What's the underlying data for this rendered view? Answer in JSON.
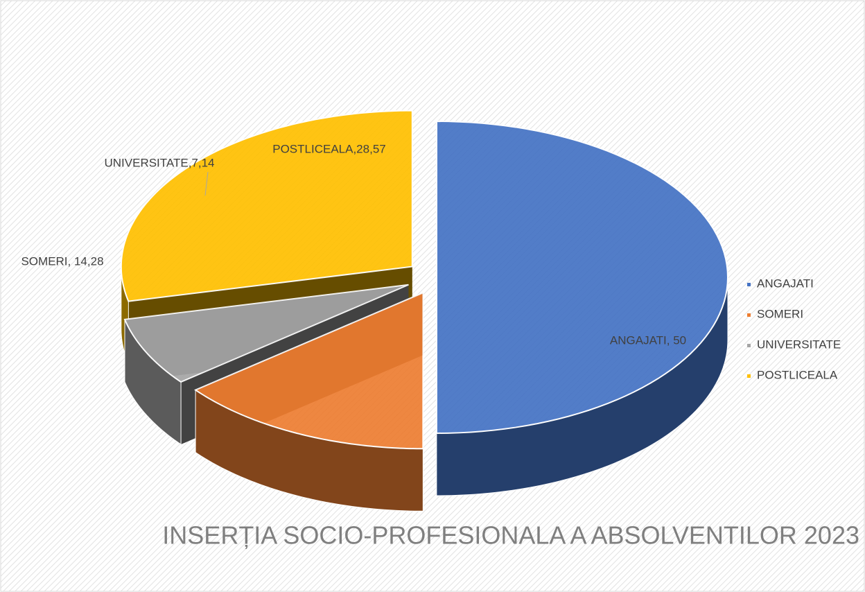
{
  "chart_data": {
    "type": "pie3d",
    "title": "INSERȚIA SOCIO-PROFESIONALA A ABSOLVENTILOR 2023",
    "categories": [
      "ANGAJATI",
      "SOMERI",
      "UNIVERSITATE",
      "POSTLICEALA"
    ],
    "values": [
      50,
      14.28,
      7.14,
      28.57
    ],
    "value_labels": [
      "ANGAJATI, 50",
      "SOMERI, 14,28",
      "UNIVERSITATE,7,14",
      "POSTLICEALA,28,57"
    ],
    "colors": [
      "#4472c4",
      "#ed7d31",
      "#a5a5a5",
      "#ffc000"
    ],
    "legend": "right"
  }
}
